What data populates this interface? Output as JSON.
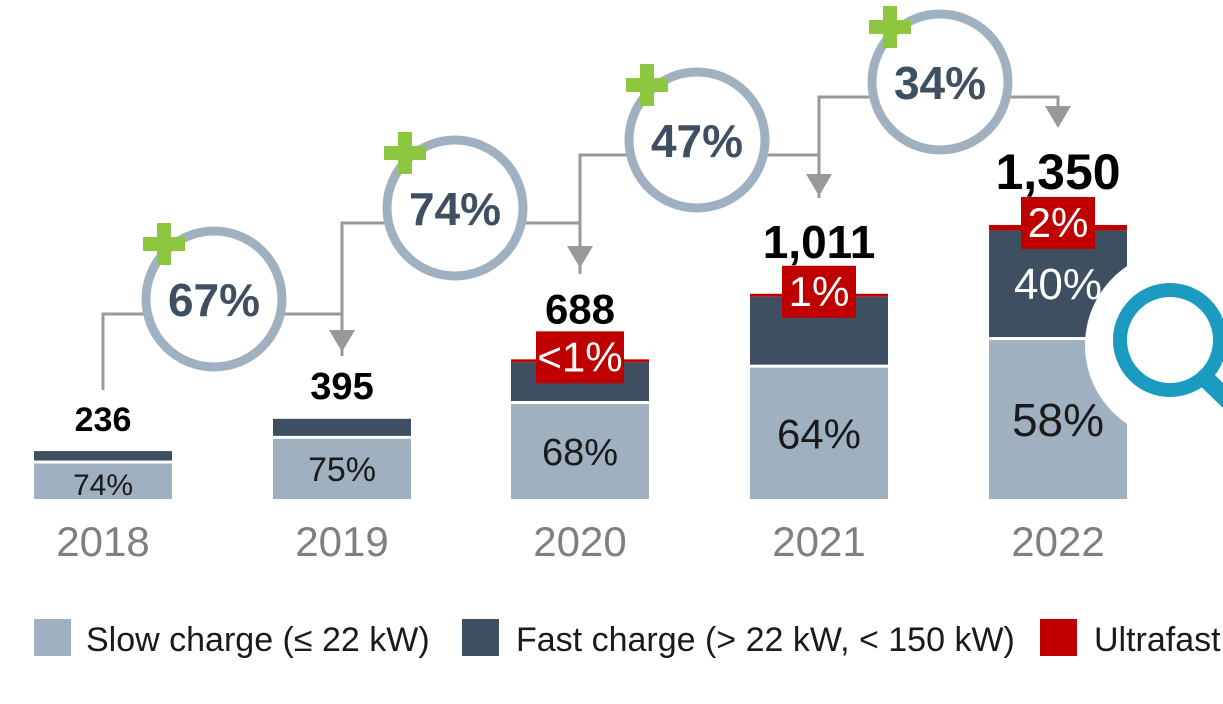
{
  "chart_data": {
    "type": "bar",
    "stacked": true,
    "categories": [
      "2018",
      "2019",
      "2020",
      "2021",
      "2022"
    ],
    "totals": [
      "236",
      "395",
      "688",
      "1,011",
      "1,350"
    ],
    "total_values": [
      236,
      395,
      688,
      1011,
      1350
    ],
    "series": [
      {
        "name": "Slow charge (≤ 22 kW)",
        "color": "#9fb1c1",
        "shares": [
          0.74,
          0.75,
          0.68,
          0.64,
          0.58
        ],
        "labels": [
          "74%",
          "75%",
          "68%",
          "64%",
          "58%"
        ]
      },
      {
        "name": "Fast charge (> 22 kW, < 150 kW)",
        "color": "#3e4f61",
        "shares": [
          0.26,
          0.25,
          0.32,
          0.35,
          0.4
        ],
        "labels": [
          "",
          "",
          "",
          "",
          "40%"
        ]
      },
      {
        "name": "Ultrafast",
        "color": "#c00000",
        "shares": [
          0,
          0,
          0.004,
          0.01,
          0.02
        ],
        "labels": [
          "",
          "",
          "<1%",
          "1%",
          "2%"
        ]
      }
    ],
    "growth": [
      "67%",
      "74%",
      "47%",
      "34%"
    ],
    "colors": {
      "connector": "#999999",
      "circle": "#9fb1c1",
      "plus": "#8dc63f",
      "text": "#3e4f61",
      "year": "#7f7f7f",
      "magnifier": "#1a9bbf"
    },
    "legend_position": "bottom"
  }
}
